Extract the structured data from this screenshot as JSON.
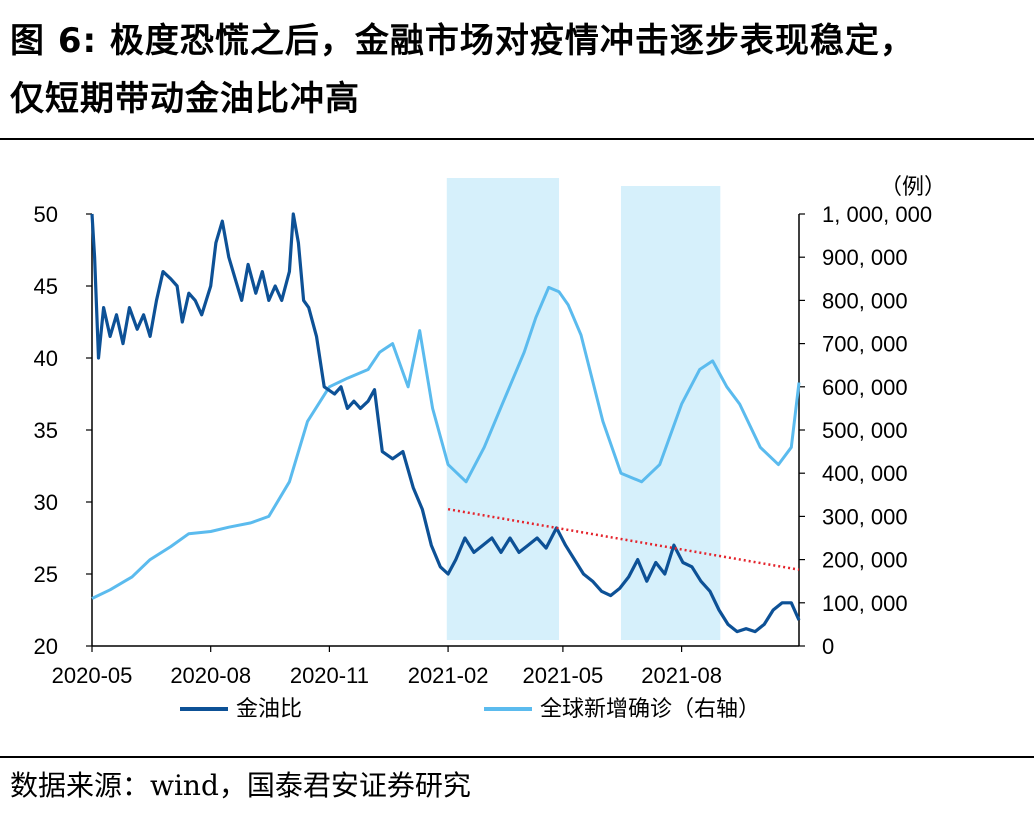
{
  "title": {
    "line1": "图  6: 极度恐慌之后，金融市场对疫情冲击逐步表现稳定，",
    "line2": "仅短期带动金油比冲高"
  },
  "source": "数据来源：wind，国泰君安证券研究",
  "colors": {
    "gold_oil": "#0d5196",
    "cases": "#5bbbee",
    "highlight": "#d6f0fb",
    "trend": "#e4242c"
  },
  "chart_data": {
    "type": "line",
    "x_ticks": [
      "2020-05",
      "2020-08",
      "2020-11",
      "2021-02",
      "2021-05",
      "2021-08"
    ],
    "x_range": [
      "2020-05-01",
      "2021-10-31"
    ],
    "y_left": {
      "ticks": [
        "50",
        "45",
        "40",
        "35",
        "30",
        "25",
        "20"
      ],
      "range": [
        20,
        50
      ]
    },
    "y_right": {
      "unit": "（例）",
      "ticks": [
        "1, 000, 000",
        "900, 000",
        "800, 000",
        "700, 000",
        "600, 000",
        "500, 000",
        "400, 000",
        "300, 000",
        "200, 000",
        "100, 000",
        "0"
      ],
      "range": [
        0,
        1000000
      ]
    },
    "highlight_periods": [
      [
        "2021-01-31",
        "2021-04-28"
      ],
      [
        "2021-06-15",
        "2021-08-31"
      ]
    ],
    "trend_line": {
      "from": [
        "2021-02-01",
        29.5
      ],
      "to": [
        "2021-10-31",
        25.3
      ],
      "axis": "left"
    },
    "series": [
      {
        "name": "金油比",
        "axis": "left",
        "points": [
          [
            "2020-05-01",
            50.0
          ],
          [
            "2020-05-03",
            47.0
          ],
          [
            "2020-05-06",
            40.0
          ],
          [
            "2020-05-10",
            43.5
          ],
          [
            "2020-05-15",
            41.5
          ],
          [
            "2020-05-20",
            43.0
          ],
          [
            "2020-05-25",
            41.0
          ],
          [
            "2020-05-30",
            43.5
          ],
          [
            "2020-06-05",
            42.0
          ],
          [
            "2020-06-10",
            43.0
          ],
          [
            "2020-06-15",
            41.5
          ],
          [
            "2020-06-20",
            44.0
          ],
          [
            "2020-06-25",
            46.0
          ],
          [
            "2020-07-01",
            45.5
          ],
          [
            "2020-07-06",
            45.0
          ],
          [
            "2020-07-10",
            42.5
          ],
          [
            "2020-07-15",
            44.5
          ],
          [
            "2020-07-20",
            44.0
          ],
          [
            "2020-07-25",
            43.0
          ],
          [
            "2020-08-01",
            45.0
          ],
          [
            "2020-08-05",
            48.0
          ],
          [
            "2020-08-10",
            49.5
          ],
          [
            "2020-08-15",
            47.0
          ],
          [
            "2020-08-20",
            45.5
          ],
          [
            "2020-08-25",
            44.0
          ],
          [
            "2020-08-30",
            46.5
          ],
          [
            "2020-09-05",
            44.5
          ],
          [
            "2020-09-10",
            46.0
          ],
          [
            "2020-09-15",
            44.0
          ],
          [
            "2020-09-20",
            45.0
          ],
          [
            "2020-09-25",
            44.0
          ],
          [
            "2020-10-01",
            46.0
          ],
          [
            "2020-10-04",
            50.0
          ],
          [
            "2020-10-08",
            48.0
          ],
          [
            "2020-10-12",
            44.0
          ],
          [
            "2020-10-16",
            43.5
          ],
          [
            "2020-10-22",
            41.5
          ],
          [
            "2020-10-28",
            38.0
          ],
          [
            "2020-11-05",
            37.5
          ],
          [
            "2020-11-10",
            38.0
          ],
          [
            "2020-11-15",
            36.5
          ],
          [
            "2020-11-20",
            37.0
          ],
          [
            "2020-11-25",
            36.5
          ],
          [
            "2020-12-01",
            37.0
          ],
          [
            "2020-12-06",
            37.8
          ],
          [
            "2020-12-12",
            33.5
          ],
          [
            "2020-12-20",
            33.0
          ],
          [
            "2020-12-28",
            33.5
          ],
          [
            "2021-01-05",
            31.0
          ],
          [
            "2021-01-12",
            29.5
          ],
          [
            "2021-01-19",
            27.0
          ],
          [
            "2021-01-26",
            25.5
          ],
          [
            "2021-02-01",
            25.0
          ],
          [
            "2021-02-07",
            26.0
          ],
          [
            "2021-02-14",
            27.5
          ],
          [
            "2021-02-21",
            26.5
          ],
          [
            "2021-02-28",
            27.0
          ],
          [
            "2021-03-07",
            27.5
          ],
          [
            "2021-03-14",
            26.5
          ],
          [
            "2021-03-21",
            27.5
          ],
          [
            "2021-03-28",
            26.5
          ],
          [
            "2021-04-04",
            27.0
          ],
          [
            "2021-04-11",
            27.5
          ],
          [
            "2021-04-18",
            26.8
          ],
          [
            "2021-04-26",
            28.2
          ],
          [
            "2021-05-03",
            27.0
          ],
          [
            "2021-05-10",
            26.0
          ],
          [
            "2021-05-17",
            25.0
          ],
          [
            "2021-05-24",
            24.5
          ],
          [
            "2021-05-31",
            23.8
          ],
          [
            "2021-06-07",
            23.5
          ],
          [
            "2021-06-14",
            24.0
          ],
          [
            "2021-06-21",
            24.8
          ],
          [
            "2021-06-28",
            26.0
          ],
          [
            "2021-07-05",
            24.5
          ],
          [
            "2021-07-12",
            25.8
          ],
          [
            "2021-07-19",
            25.0
          ],
          [
            "2021-07-26",
            27.0
          ],
          [
            "2021-08-02",
            25.8
          ],
          [
            "2021-08-09",
            25.5
          ],
          [
            "2021-08-16",
            24.5
          ],
          [
            "2021-08-23",
            23.8
          ],
          [
            "2021-08-30",
            22.5
          ],
          [
            "2021-09-06",
            21.5
          ],
          [
            "2021-09-13",
            21.0
          ],
          [
            "2021-09-20",
            21.2
          ],
          [
            "2021-09-27",
            21.0
          ],
          [
            "2021-10-04",
            21.5
          ],
          [
            "2021-10-11",
            22.5
          ],
          [
            "2021-10-18",
            23.0
          ],
          [
            "2021-10-25",
            23.0
          ],
          [
            "2021-10-31",
            21.8
          ]
        ]
      },
      {
        "name": "全球新增确诊（右轴）",
        "axis": "right",
        "points": [
          [
            "2020-05-01",
            110000
          ],
          [
            "2020-05-15",
            130000
          ],
          [
            "2020-06-01",
            160000
          ],
          [
            "2020-06-15",
            200000
          ],
          [
            "2020-07-01",
            230000
          ],
          [
            "2020-07-15",
            260000
          ],
          [
            "2020-08-01",
            265000
          ],
          [
            "2020-08-15",
            275000
          ],
          [
            "2020-09-01",
            285000
          ],
          [
            "2020-09-15",
            300000
          ],
          [
            "2020-10-01",
            380000
          ],
          [
            "2020-10-15",
            520000
          ],
          [
            "2020-11-01",
            600000
          ],
          [
            "2020-11-15",
            620000
          ],
          [
            "2020-12-01",
            640000
          ],
          [
            "2020-12-10",
            680000
          ],
          [
            "2020-12-20",
            700000
          ],
          [
            "2021-01-01",
            600000
          ],
          [
            "2021-01-10",
            730000
          ],
          [
            "2021-01-20",
            550000
          ],
          [
            "2021-02-01",
            420000
          ],
          [
            "2021-02-15",
            380000
          ],
          [
            "2021-03-01",
            460000
          ],
          [
            "2021-03-15",
            560000
          ],
          [
            "2021-04-01",
            680000
          ],
          [
            "2021-04-10",
            760000
          ],
          [
            "2021-04-20",
            830000
          ],
          [
            "2021-04-28",
            820000
          ],
          [
            "2021-05-05",
            790000
          ],
          [
            "2021-05-15",
            720000
          ],
          [
            "2021-06-01",
            520000
          ],
          [
            "2021-06-15",
            400000
          ],
          [
            "2021-07-01",
            380000
          ],
          [
            "2021-07-15",
            420000
          ],
          [
            "2021-08-01",
            560000
          ],
          [
            "2021-08-15",
            640000
          ],
          [
            "2021-08-25",
            660000
          ],
          [
            "2021-09-05",
            600000
          ],
          [
            "2021-09-15",
            560000
          ],
          [
            "2021-10-01",
            460000
          ],
          [
            "2021-10-15",
            420000
          ],
          [
            "2021-10-25",
            460000
          ],
          [
            "2021-10-31",
            610000
          ]
        ]
      }
    ],
    "legend": {
      "position": "bottom"
    }
  }
}
